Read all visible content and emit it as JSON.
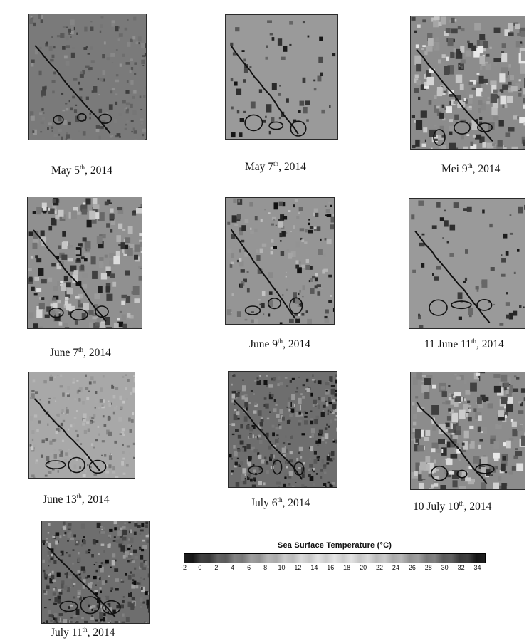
{
  "panels": [
    {
      "id": "may5",
      "caption": {
        "pre": "May 5",
        "sup": "th",
        "post": ", 2014"
      },
      "style": "dark-fine"
    },
    {
      "id": "may7",
      "caption": {
        "pre": "May 7",
        "sup": "th",
        "post": ", 2014"
      },
      "style": "cloud-sparse"
    },
    {
      "id": "mei9",
      "caption": {
        "pre": "Mei 9",
        "sup": "th",
        "post": ", 2014"
      },
      "style": "mixed-bright"
    },
    {
      "id": "june7",
      "caption": {
        "pre": "June 7",
        "sup": "th",
        "post": ", 2014"
      },
      "style": "blocky"
    },
    {
      "id": "june9",
      "caption": {
        "pre": "June 9",
        "sup": "th",
        "post": ", 2014"
      },
      "style": "patchy"
    },
    {
      "id": "june11",
      "caption": {
        "pre": "11 June 11",
        "sup": "th",
        "post": ", 2014"
      },
      "style": "cloud-sparse"
    },
    {
      "id": "june13",
      "caption": {
        "pre": "June 13",
        "sup": "th",
        "post": ", 2014"
      },
      "style": "light-fine"
    },
    {
      "id": "july6",
      "caption": {
        "pre": "July 6",
        "sup": "th",
        "post": ", 2014"
      },
      "style": "dense-dark"
    },
    {
      "id": "july10",
      "caption": {
        "pre": "10 July 10",
        "sup": "th",
        "post": ", 2014"
      },
      "style": "mixed-bright"
    },
    {
      "id": "july11",
      "caption": {
        "pre": "July 11",
        "sup": "th",
        "post": ", 2014"
      },
      "style": "dense-dark"
    }
  ],
  "legend": {
    "title": "Sea Surface Temperature   (°C)",
    "tick_labels": [
      "-2",
      "0",
      "2",
      "4",
      "6",
      "8",
      "10",
      "12",
      "14",
      "16",
      "18",
      "20",
      "22",
      "24",
      "26",
      "28",
      "30",
      "32",
      "34"
    ],
    "range": [
      -2,
      35
    ],
    "colors": {
      "low": "#1a1a1a",
      "high": "#0d0d0d",
      "mid": "#d8d8d8"
    }
  }
}
